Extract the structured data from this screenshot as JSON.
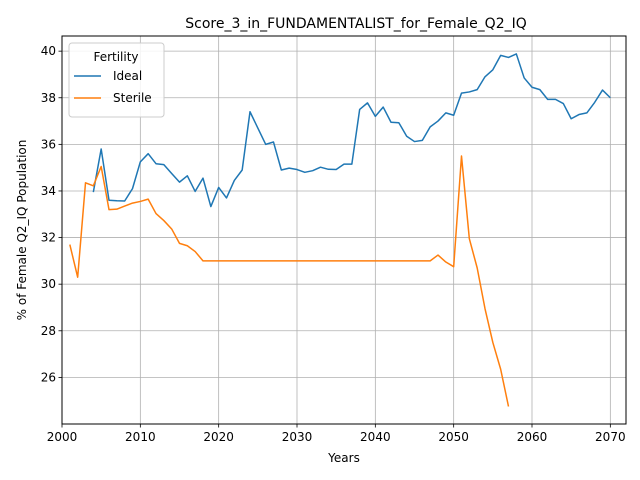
{
  "chart_data": {
    "type": "line",
    "title": "Score_3_in_FUNDAMENTALIST_for_Female_Q2_IQ",
    "xlabel": "Years",
    "ylabel": "% of Female Q2_IQ Population",
    "xlim": [
      2000,
      2072
    ],
    "ylim": [
      24.0,
      40.65
    ],
    "x_ticks": [
      2000,
      2010,
      2020,
      2030,
      2040,
      2050,
      2060,
      2070
    ],
    "y_ticks": [
      26,
      28,
      30,
      32,
      34,
      36,
      38,
      40
    ],
    "grid": true,
    "legend": {
      "title": "Fertility",
      "placement": "upper-left"
    },
    "series": [
      {
        "name": "Ideal",
        "color": "#1f77b4",
        "x": [
          2004,
          2005,
          2006,
          2007,
          2008,
          2009,
          2010,
          2011,
          2012,
          2013,
          2014,
          2015,
          2016,
          2017,
          2018,
          2019,
          2020,
          2021,
          2022,
          2023,
          2024,
          2025,
          2026,
          2027,
          2028,
          2029,
          2030,
          2031,
          2032,
          2033,
          2034,
          2035,
          2036,
          2037,
          2038,
          2039,
          2040,
          2041,
          2042,
          2043,
          2044,
          2045,
          2046,
          2047,
          2048,
          2049,
          2050,
          2051,
          2052,
          2053,
          2054,
          2055,
          2056,
          2057,
          2058,
          2059,
          2060,
          2061,
          2062,
          2063,
          2064,
          2065,
          2066,
          2067,
          2068,
          2069,
          2070
        ],
        "values": [
          33.95,
          35.8,
          33.6,
          33.58,
          33.57,
          34.1,
          35.25,
          35.6,
          35.17,
          35.13,
          34.75,
          34.38,
          34.65,
          33.98,
          34.55,
          33.33,
          34.15,
          33.7,
          34.45,
          34.9,
          37.4,
          36.7,
          36.0,
          36.1,
          34.9,
          34.98,
          34.92,
          34.8,
          34.87,
          35.02,
          34.93,
          34.92,
          35.15,
          35.15,
          37.5,
          37.78,
          37.2,
          37.6,
          36.95,
          36.93,
          36.35,
          36.12,
          36.17,
          36.75,
          37.0,
          37.35,
          37.25,
          38.2,
          38.25,
          38.35,
          38.9,
          39.2,
          39.82,
          39.73,
          39.88,
          38.85,
          38.45,
          38.35,
          37.93,
          37.93,
          37.75,
          37.1,
          37.28,
          37.35,
          37.8,
          38.33,
          38.0
        ]
      },
      {
        "name": "Sterile",
        "color": "#ff7f0e",
        "x": [
          2001,
          2002,
          2003,
          2004,
          2005,
          2006,
          2007,
          2008,
          2009,
          2010,
          2011,
          2012,
          2013,
          2014,
          2015,
          2016,
          2017,
          2018,
          2019,
          2020,
          2021,
          2022,
          2023,
          2024,
          2025,
          2026,
          2027,
          2028,
          2029,
          2030,
          2031,
          2032,
          2033,
          2034,
          2035,
          2036,
          2037,
          2038,
          2039,
          2040,
          2041,
          2042,
          2043,
          2044,
          2045,
          2046,
          2047,
          2048,
          2049,
          2050,
          2051,
          2052,
          2053,
          2054,
          2055,
          2056,
          2057
        ],
        "values": [
          31.7,
          30.3,
          34.35,
          34.22,
          35.05,
          33.2,
          33.22,
          33.35,
          33.48,
          33.55,
          33.65,
          33.03,
          32.73,
          32.37,
          31.75,
          31.65,
          31.4,
          31.0,
          31.0,
          31.0,
          31.0,
          31.0,
          31.0,
          31.0,
          31.0,
          31.0,
          31.0,
          31.0,
          31.0,
          31.0,
          31.0,
          31.0,
          31.0,
          31.0,
          31.0,
          31.0,
          31.0,
          31.0,
          31.0,
          31.0,
          31.0,
          31.0,
          31.0,
          31.0,
          31.0,
          31.0,
          31.0,
          31.25,
          30.95,
          30.75,
          35.5,
          31.95,
          30.7,
          28.95,
          27.5,
          26.35,
          24.75
        ]
      }
    ]
  }
}
